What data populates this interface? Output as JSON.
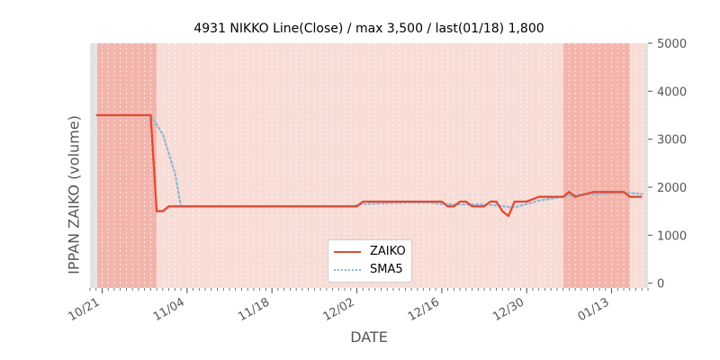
{
  "chart_data": {
    "type": "line",
    "title": "4931 NIKKO Line(Close) / max 3,500 / last(01/18) 1,800",
    "xlabel": "DATE",
    "ylabel": "IPPAN ZAIKO (volume)",
    "ylim": [
      -100,
      5000
    ],
    "xlim": [
      "2019-10-19",
      "2020-01-19"
    ],
    "yticks": [
      0,
      1000,
      2000,
      3000,
      4000,
      5000
    ],
    "xticks": [
      "10/21",
      "11/04",
      "11/18",
      "12/02",
      "12/16",
      "12/30",
      "01/13"
    ],
    "xtick_dates": [
      "2019-10-21",
      "2019-11-04",
      "2019-11-18",
      "2019-12-02",
      "2019-12-16",
      "2019-12-30",
      "2020-01-13"
    ],
    "grid": false,
    "legend_position": "lower center",
    "highlight_ranges": [
      {
        "from": "2019-10-20",
        "to": "2019-10-29",
        "color": "#f2a79e"
      },
      {
        "from": "2020-01-05",
        "to": "2020-01-06",
        "color": "#f2a79e"
      },
      {
        "from": "2020-01-07",
        "to": "2020-01-15",
        "color": "#f2a79e"
      }
    ],
    "series": [
      {
        "name": "ZAIKO",
        "color": "#e24a33",
        "style": "solid",
        "x": [
          "2019-10-20",
          "2019-10-21",
          "2019-10-22",
          "2019-10-23",
          "2019-10-24",
          "2019-10-25",
          "2019-10-26",
          "2019-10-27",
          "2019-10-28",
          "2019-10-29",
          "2019-10-30",
          "2019-10-31",
          "2019-11-01",
          "2019-11-02",
          "2019-11-03",
          "2019-11-04",
          "2019-11-10",
          "2019-11-20",
          "2019-11-30",
          "2019-12-02",
          "2019-12-03",
          "2019-12-10",
          "2019-12-14",
          "2019-12-15",
          "2019-12-16",
          "2019-12-17",
          "2019-12-18",
          "2019-12-19",
          "2019-12-20",
          "2019-12-21",
          "2019-12-22",
          "2019-12-23",
          "2019-12-24",
          "2019-12-25",
          "2019-12-26",
          "2019-12-27",
          "2019-12-28",
          "2019-12-29",
          "2019-12-30",
          "2020-01-01",
          "2020-01-04",
          "2020-01-05",
          "2020-01-06",
          "2020-01-07",
          "2020-01-10",
          "2020-01-14",
          "2020-01-15",
          "2020-01-16",
          "2020-01-18"
        ],
        "y": [
          3500,
          3500,
          3500,
          3500,
          3500,
          3500,
          3500,
          3500,
          3500,
          3500,
          1500,
          1500,
          1600,
          1600,
          1600,
          1600,
          1600,
          1600,
          1600,
          1600,
          1700,
          1700,
          1700,
          1700,
          1700,
          1600,
          1600,
          1700,
          1700,
          1600,
          1600,
          1600,
          1700,
          1700,
          1500,
          1400,
          1700,
          1700,
          1700,
          1800,
          1800,
          1800,
          1900,
          1800,
          1900,
          1900,
          1900,
          1800,
          1800
        ]
      },
      {
        "name": "SMA5",
        "color": "#8eb8d6",
        "style": "dotted",
        "x": [
          "2019-10-24",
          "2019-10-28",
          "2019-10-29",
          "2019-10-31",
          "2019-11-02",
          "2019-11-03",
          "2019-11-10",
          "2019-11-20",
          "2019-12-01",
          "2019-12-03",
          "2019-12-10",
          "2019-12-14",
          "2019-12-16",
          "2019-12-18",
          "2019-12-20",
          "2019-12-23",
          "2019-12-25",
          "2019-12-27",
          "2019-12-28",
          "2019-12-30",
          "2020-01-01",
          "2020-01-04",
          "2020-01-06",
          "2020-01-08",
          "2020-01-10",
          "2020-01-14",
          "2020-01-16",
          "2020-01-18"
        ],
        "y": [
          3500,
          3500,
          3500,
          3100,
          2300,
          1600,
          1600,
          1600,
          1600,
          1650,
          1680,
          1680,
          1650,
          1640,
          1640,
          1640,
          1620,
          1590,
          1580,
          1650,
          1720,
          1780,
          1820,
          1850,
          1860,
          1880,
          1880,
          1860
        ]
      }
    ]
  }
}
